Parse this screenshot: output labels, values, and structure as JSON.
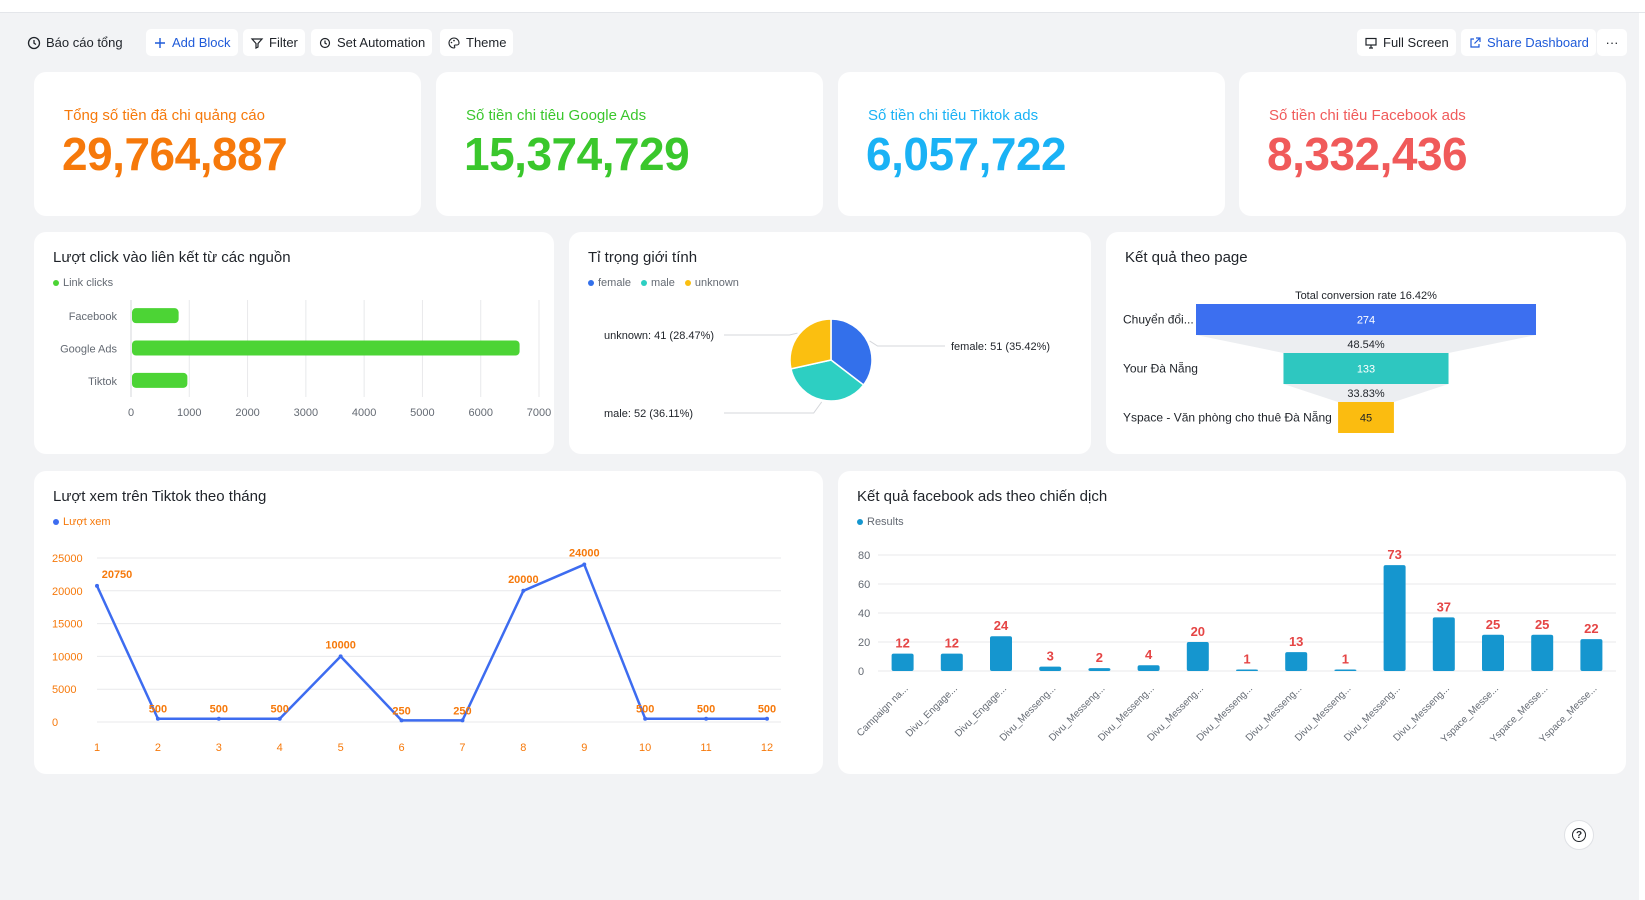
{
  "toolbar": {
    "report_title": "Báo cáo tổng",
    "add_block": "Add Block",
    "filter": "Filter",
    "set_automation": "Set Automation",
    "theme": "Theme",
    "full_screen": "Full Screen",
    "share_dashboard": "Share Dashboard",
    "more": "···"
  },
  "kpis": [
    {
      "label": "Tổng số tiền đã chi quảng cáo",
      "value": "29,764,887",
      "color": "#f6790b"
    },
    {
      "label": "Số tiền chi tiêu Google Ads",
      "value": "15,374,729",
      "color": "#3ac72c"
    },
    {
      "label": "Số tiền chi tiêu Tiktok ads",
      "value": "6,057,722",
      "color": "#1ab2f5"
    },
    {
      "label": "Số tiền chi tiêu Facebook ads",
      "value": "8,332,436",
      "color": "#f05a5a"
    }
  ],
  "colors": {
    "green_bar": "#4cd435",
    "pie_female": "#3370eb",
    "pie_male": "#2dcfc2",
    "pie_unknown": "#fbbf10",
    "funnel_1": "#3c6ff0",
    "funnel_2": "#2ec7c0",
    "funnel_3": "#fbbc10",
    "line": "#3d6cf0",
    "line_label": "#f6790b",
    "fb_bar": "#1596cf",
    "fb_label": "#e54545"
  },
  "chart_data": [
    {
      "type": "bar",
      "orientation": "horizontal",
      "title": "Lượt click vào liên kết từ các nguồn",
      "legend": [
        "Link clicks"
      ],
      "categories": [
        "Facebook",
        "Google Ads",
        "Tiktok"
      ],
      "series": [
        {
          "name": "Link clicks",
          "values": [
            800,
            6650,
            950
          ]
        }
      ],
      "xlim": [
        0,
        7000
      ],
      "xticks": [
        "0",
        "1000",
        "2000",
        "3000",
        "4000",
        "5000",
        "6000",
        "7000"
      ],
      "grid": true
    },
    {
      "type": "pie",
      "title": "Tỉ trọng giới tính",
      "legend": [
        "female",
        "male",
        "unknown"
      ],
      "slices": [
        {
          "name": "female",
          "value": 51,
          "label": "female: 51 (35.42%)"
        },
        {
          "name": "male",
          "value": 52,
          "label": "male: 52 (36.11%)"
        },
        {
          "name": "unknown",
          "value": 41,
          "label": "unknown: 41 (28.47%)"
        }
      ]
    },
    {
      "type": "funnel",
      "title": "Kết quả theo page",
      "total_label": "Total conversion rate 16.42%",
      "stages": [
        {
          "name": "Chuyển đổi...",
          "value": 274
        },
        {
          "name": "Your Đà Nẵng",
          "value": 133
        },
        {
          "name": "Yspace - Văn phòng cho thuê Đà Nẵng",
          "value": 45
        }
      ],
      "conversion_labels": [
        "48.54%",
        "33.83%"
      ]
    },
    {
      "type": "line",
      "title": "Lượt xem trên Tiktok theo tháng",
      "legend": [
        "Lượt xem"
      ],
      "x": [
        "1",
        "2",
        "3",
        "4",
        "5",
        "6",
        "7",
        "8",
        "9",
        "10",
        "11",
        "12"
      ],
      "series": [
        {
          "name": "Lượt xem",
          "values": [
            20750,
            500,
            500,
            500,
            10000,
            250,
            250,
            20000,
            24000,
            500,
            500,
            500
          ]
        }
      ],
      "ylim": [
        0,
        25000
      ],
      "yticks": [
        "0",
        "5000",
        "10000",
        "15000",
        "20000",
        "25000"
      ],
      "grid": true
    },
    {
      "type": "bar",
      "title": "Kết quả facebook ads theo chiến dịch",
      "legend": [
        "Results"
      ],
      "categories": [
        "Campaign na...",
        "Divu_Engage...",
        "Divu_Engage...",
        "Divu_Messeng...",
        "Divu_Messeng...",
        "Divu_Messeng...",
        "Divu_Messeng...",
        "Divu_Messeng...",
        "Divu_Messeng...",
        "Divu_Messeng...",
        "Divu_Messeng...",
        "Divu_Messeng...",
        "Yspace_Messe...",
        "Yspace_Messe...",
        "Yspace_Messe..."
      ],
      "series": [
        {
          "name": "Results",
          "values": [
            12,
            12,
            24,
            3,
            2,
            4,
            20,
            1,
            13,
            1,
            73,
            37,
            25,
            25,
            22
          ]
        }
      ],
      "ylim": [
        0,
        80
      ],
      "yticks": [
        "0",
        "20",
        "40",
        "60",
        "80"
      ],
      "grid": true
    }
  ]
}
